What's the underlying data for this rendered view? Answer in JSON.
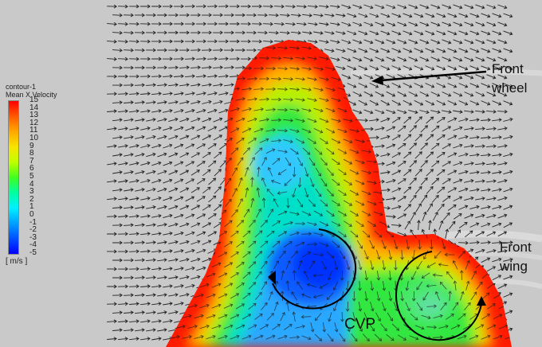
{
  "legend": {
    "title": "contour-1",
    "subtitle": "Mean X Velocity",
    "ticks": [
      "15",
      "14",
      "13",
      "12",
      "11",
      "10",
      "9",
      "8",
      "7",
      "6",
      "5",
      "4",
      "3",
      "2",
      "1",
      "0",
      "-1",
      "-2",
      "-3",
      "-4",
      "-5"
    ],
    "unit": "[ m/s ]"
  },
  "labels": {
    "front_wheel_line1": "Front",
    "front_wheel_line2": "wheel",
    "front_wing_line1": "Front",
    "front_wing_line2": "wing",
    "cvp": "CVP"
  },
  "colors": {
    "background": "#c9c9c9",
    "max": "#ff0000",
    "min": "#0000ff"
  }
}
